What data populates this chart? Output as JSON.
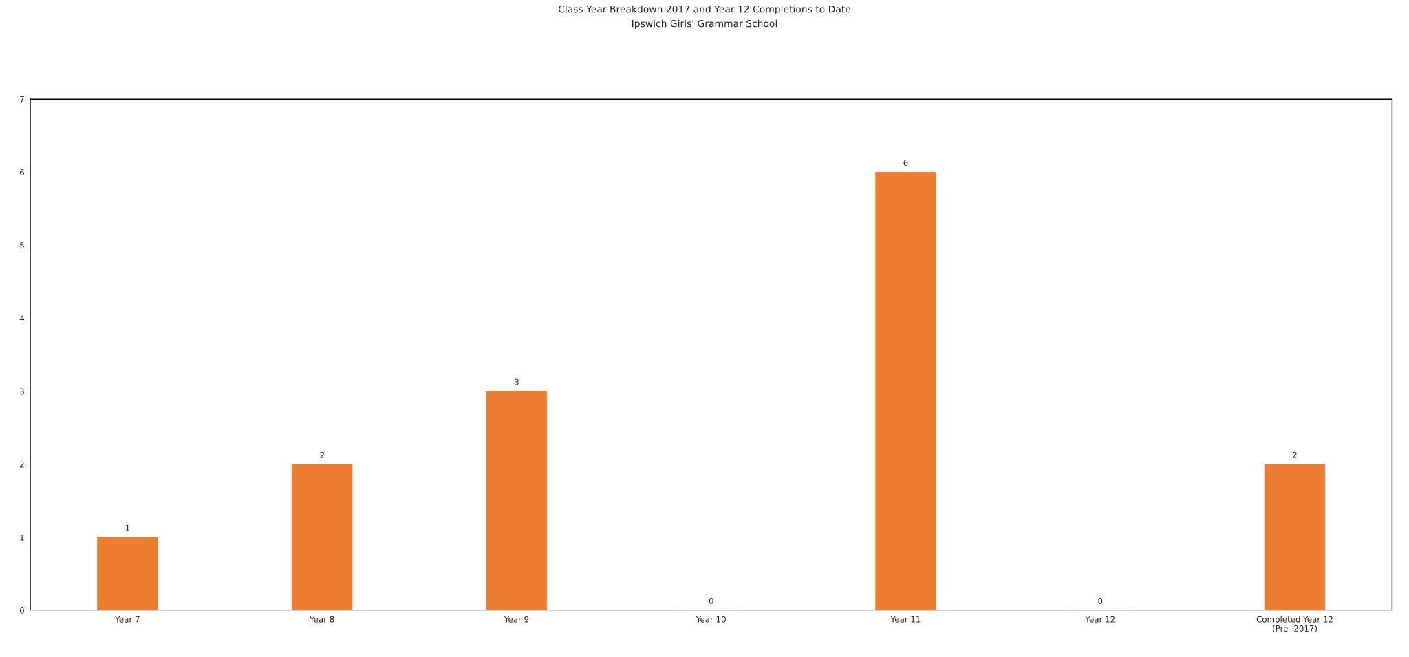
{
  "chart_data": {
    "type": "bar",
    "title": "Class Year Breakdown 2017 and Year 12 Completions to Date",
    "subtitle": "Ipswich Girls' Grammar School",
    "categories": [
      "Year 7",
      "Year 8",
      "Year 9",
      "Year 10",
      "Year 11",
      "Year 12",
      "Completed Year 12\n(Pre- 2017)"
    ],
    "values": [
      1,
      2,
      3,
      0,
      6,
      0,
      2
    ],
    "color": "#ed7d31",
    "ylim": [
      0,
      7
    ],
    "yticks": [
      0,
      1,
      2,
      3,
      4,
      5,
      6,
      7
    ],
    "grid": false,
    "legend": false,
    "data_labels": true
  }
}
